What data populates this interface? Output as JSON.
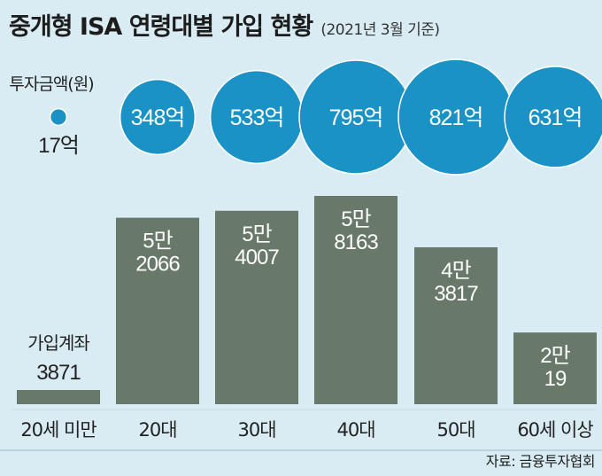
{
  "title": "중개형 ISA 연령대별 가입 현황",
  "subtitle": "(2021년 3월 기준)",
  "source": "자료: 금융투자협회",
  "colors": {
    "background": "#d9ecf3",
    "bar": "#687869",
    "bubble": "#1a92c6",
    "bubble_text": "#ffffff",
    "bar_text": "#ffffff"
  },
  "chart_data": [
    {
      "type": "scatter",
      "series_label": "투자금액(원)",
      "categories": [
        "20세 미만",
        "20대",
        "30대",
        "40대",
        "50대",
        "60세 이상"
      ],
      "values": [
        17,
        348,
        533,
        795,
        821,
        631
      ],
      "labels": [
        "17억",
        "348억",
        "533억",
        "795억",
        "821억",
        "631억"
      ]
    },
    {
      "type": "bar",
      "series_label": "가입계좌",
      "categories": [
        "20세 미만",
        "20대",
        "30대",
        "40대",
        "50대",
        "60세 이상"
      ],
      "values": [
        3871,
        52066,
        54007,
        58163,
        43817,
        20019
      ],
      "labels": [
        [
          "3871"
        ],
        [
          "5만",
          "2066"
        ],
        [
          "5만",
          "4007"
        ],
        [
          "5만",
          "8163"
        ],
        [
          "4만",
          "3817"
        ],
        [
          "2만",
          "19"
        ]
      ]
    }
  ]
}
